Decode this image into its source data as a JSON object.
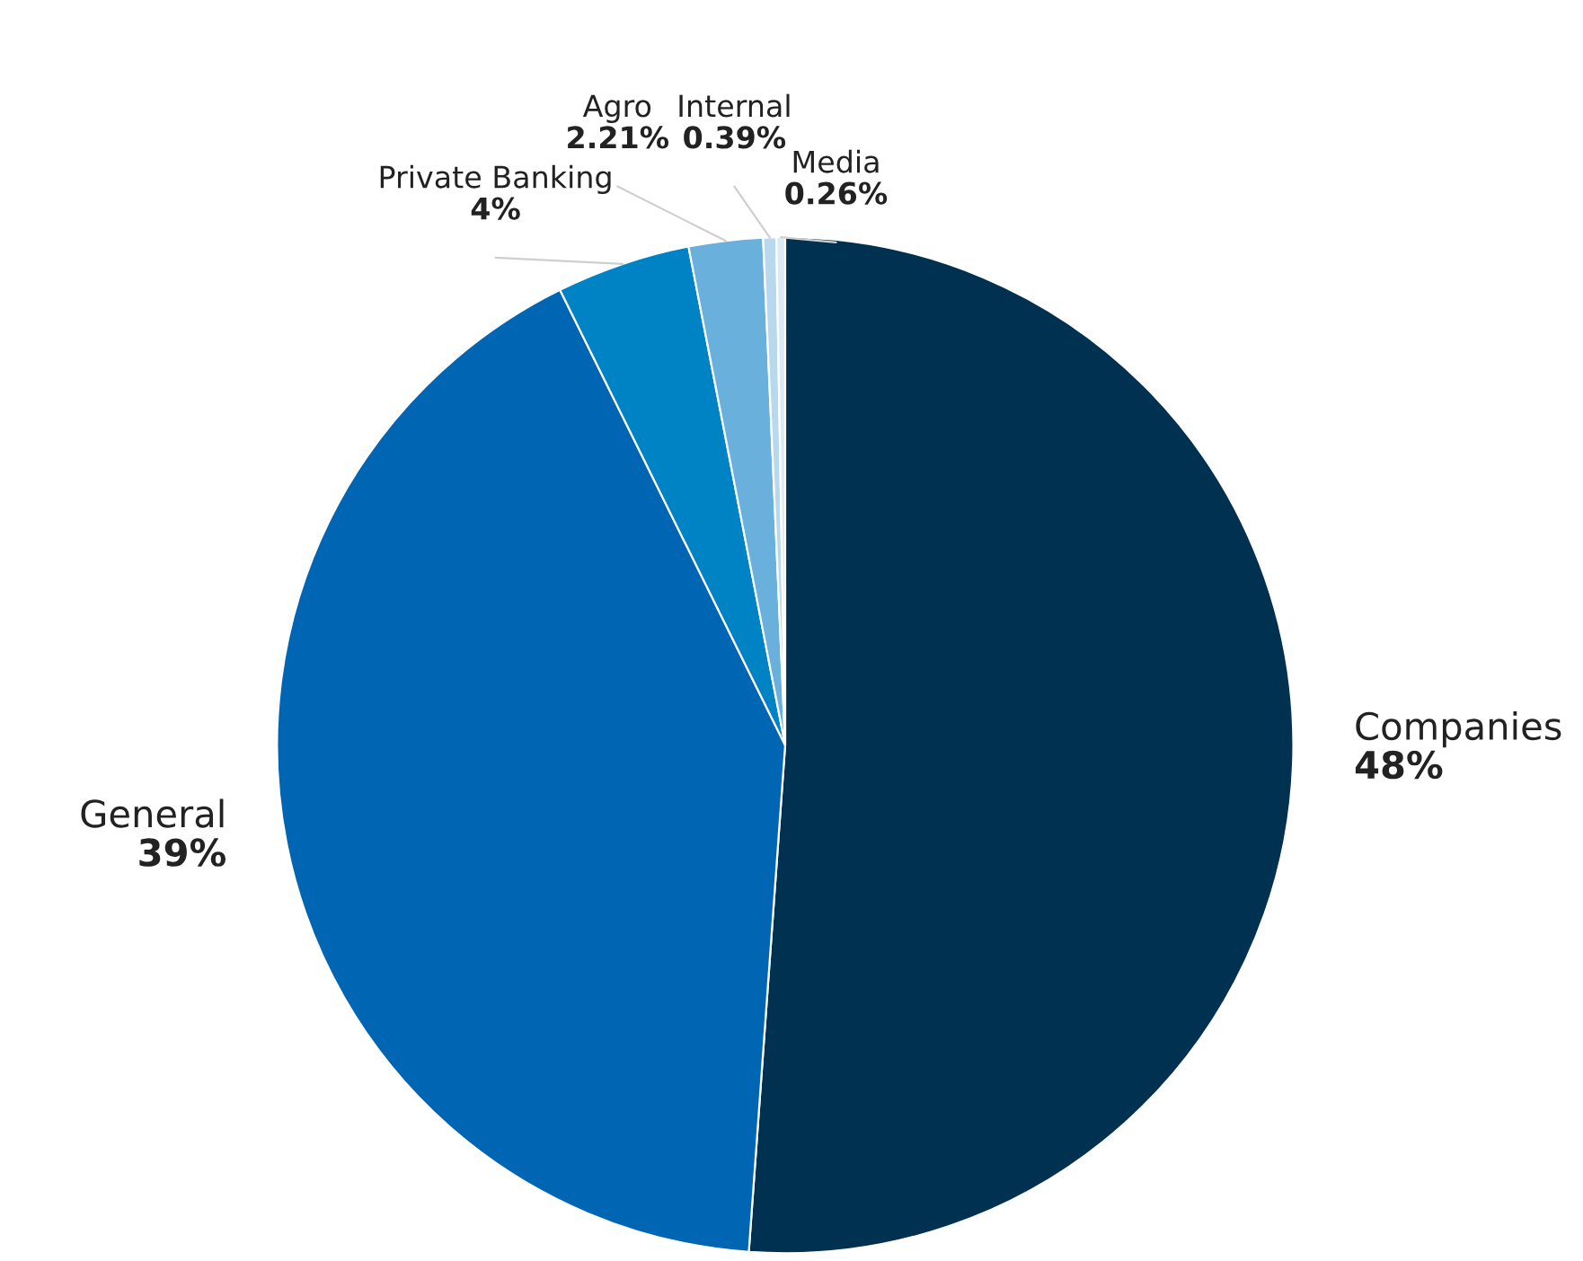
{
  "chart_data": {
    "type": "pie",
    "categories": [
      "Companies",
      "General",
      "Private Banking",
      "Agro",
      "Internal",
      "Media"
    ],
    "values": [
      48,
      39,
      4,
      2.21,
      0.39,
      0.26
    ],
    "value_labels": [
      "48%",
      "39%",
      "4%",
      "2.21%",
      "0.39%",
      "0.26%"
    ],
    "colors": [
      "#003150",
      "#0066b3",
      "#0083c4",
      "#6ab0dc",
      "#b8d8ee",
      "#dde9f3"
    ]
  }
}
